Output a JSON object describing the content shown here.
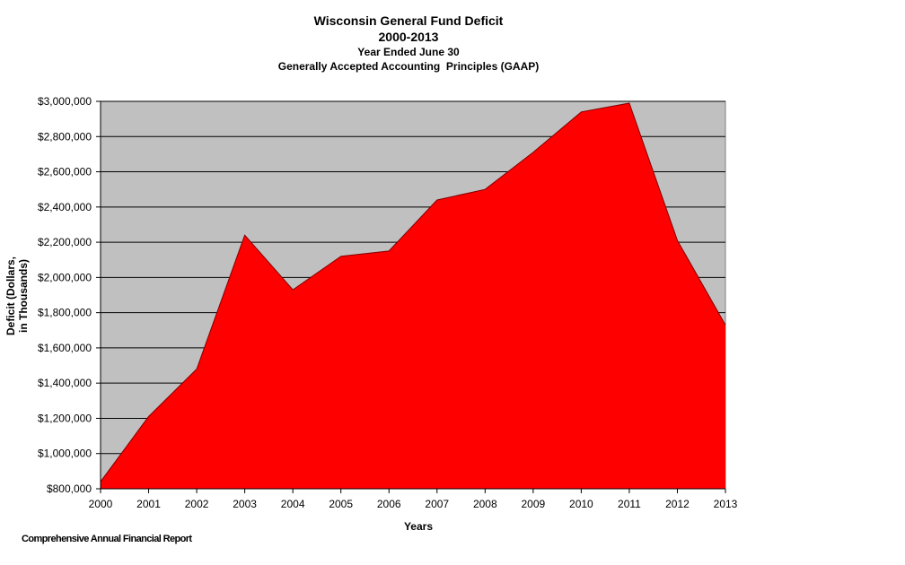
{
  "chart_data": {
    "type": "area",
    "title": "Wisconsin General Fund Deficit",
    "subtitle_lines": [
      "2000-2013",
      "Year Ended June 30",
      "Generally Accepted Accounting  Principles (GAAP)"
    ],
    "xlabel": "Years",
    "ylabel_lines": [
      "Deficit (Dollars,",
      "in Thousands)"
    ],
    "x": [
      2000,
      2001,
      2002,
      2003,
      2004,
      2005,
      2006,
      2007,
      2008,
      2009,
      2010,
      2011,
      2012,
      2013
    ],
    "series": [
      {
        "values": [
          840000,
          1210000,
          1480000,
          2240000,
          1930000,
          2120000,
          2150000,
          2440000,
          2500000,
          2710000,
          2940000,
          2990000,
          2210000,
          1730000
        ]
      }
    ],
    "ylim": [
      800000,
      3000000
    ],
    "yticks": [
      800000,
      1000000,
      1200000,
      1400000,
      1600000,
      1800000,
      2000000,
      2200000,
      2400000,
      2600000,
      2800000,
      3000000
    ],
    "ytick_labels": [
      "$800,000",
      "$1,000,000",
      "$1,200,000",
      "$1,400,000",
      "$1,600,000",
      "$1,800,000",
      "$2,000,000",
      "$2,200,000",
      "$2,400,000",
      "$2,600,000",
      "$2,800,000",
      "$3,000,000"
    ],
    "grid": true,
    "legend": "none",
    "colors": {
      "area_fill": "#FF0000",
      "area_stroke": "#800000",
      "plot_background": "#C0C0C0",
      "gridline": "#000000"
    }
  },
  "footer": {
    "source": "Comprehensive Annual Financial Report"
  }
}
